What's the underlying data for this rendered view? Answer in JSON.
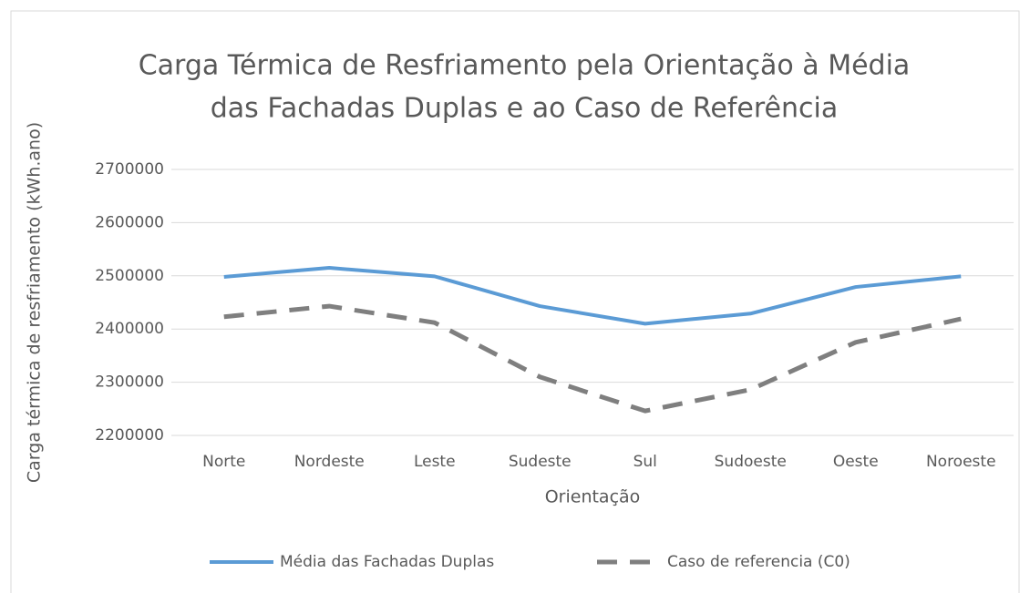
{
  "chart_data": {
    "type": "line",
    "title": [
      "Carga Térmica de Resfriamento pela Orientação à Média",
      "das Fachadas Duplas e ao Caso de Referência"
    ],
    "x_label": "Orientação",
    "y_label": "Carga térmica de resfriamento (kWh.ano)",
    "categories": [
      "Norte",
      "Nordeste",
      "Leste",
      "Sudeste",
      "Sul",
      "Sudoeste",
      "Oeste",
      "Noroeste"
    ],
    "series": [
      {
        "name": "Média das Fachadas Duplas",
        "color": "#5b9bd5",
        "dash": false,
        "values": [
          2498000,
          2515000,
          2499000,
          2443000,
          2410000,
          2429000,
          2479000,
          2499000
        ]
      },
      {
        "name": "Caso de referencia (C0)",
        "color": "#7f7f7f",
        "dash": true,
        "values": [
          2423000,
          2443000,
          2412000,
          2310000,
          2246000,
          2286000,
          2375000,
          2419000
        ]
      }
    ],
    "ylim": [
      2200000,
      2700000
    ],
    "yticks": [
      2200000,
      2300000,
      2400000,
      2500000,
      2600000,
      2700000
    ],
    "grid": true,
    "legend": "bottom"
  }
}
